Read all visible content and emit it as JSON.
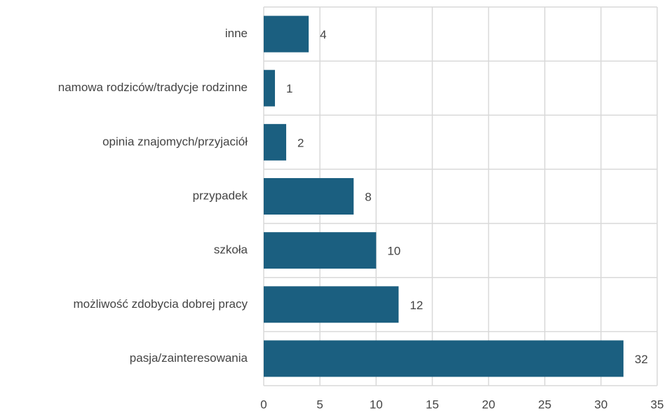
{
  "chart_data": {
    "type": "barh",
    "categories": [
      "inne",
      "namowa rodziców/tradycje rodzinne",
      "opinia znajomych/przyjaciół",
      "przypadek",
      "szkoła",
      "możliwość zdobycia dobrej pracy",
      "pasja/zainteresowania"
    ],
    "values": [
      4,
      1,
      2,
      8,
      10,
      12,
      32
    ],
    "color": "#1b5f80",
    "xlim": [
      0,
      35
    ],
    "xticks": [
      0,
      5,
      10,
      15,
      20,
      25,
      30,
      35
    ],
    "grid": true
  }
}
